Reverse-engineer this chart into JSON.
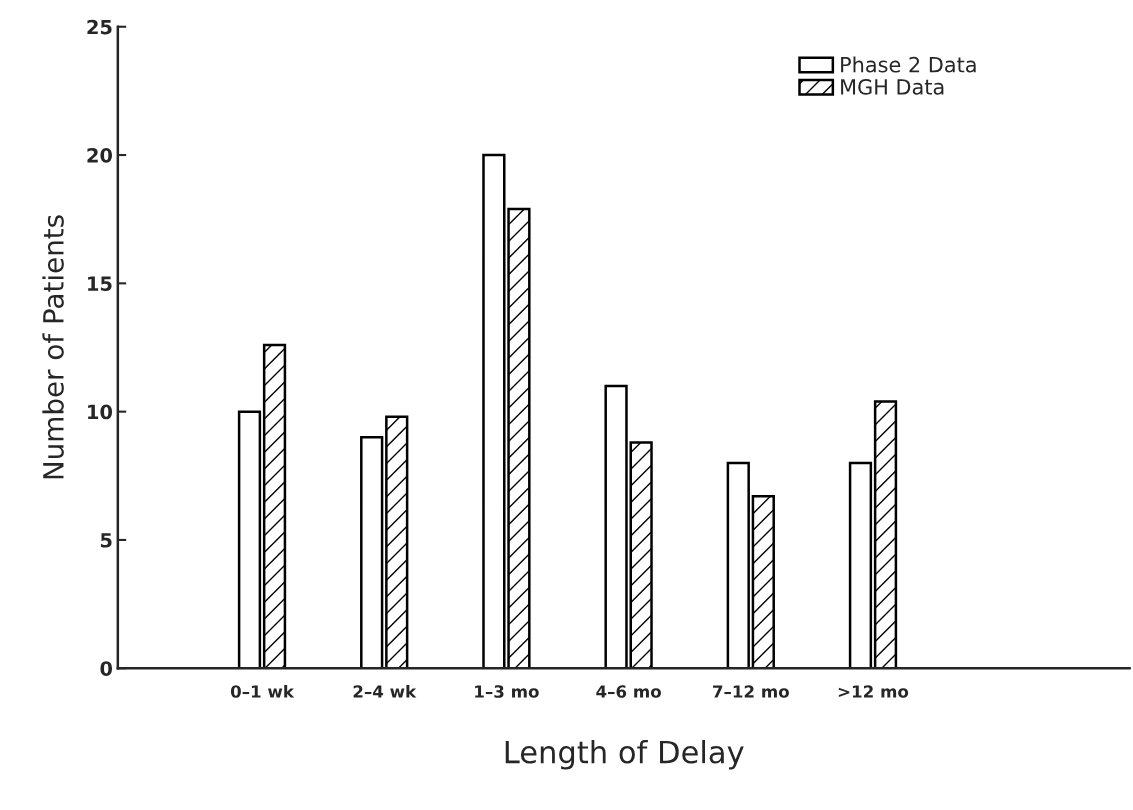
{
  "chart_data": {
    "type": "bar",
    "xlabel": "Length of Delay",
    "ylabel": "Number of Patients",
    "categories": [
      "0–1 wk",
      "2–4 wk",
      "1–3 mo",
      "4–6 mo",
      "7–12 mo",
      ">12 mo"
    ],
    "series": [
      {
        "name": "Phase 2 Data",
        "color": "#ffffff",
        "values": [
          10,
          9,
          20,
          11,
          8,
          8
        ]
      },
      {
        "name": "MGH Data",
        "color": "#000000",
        "values": [
          12.6,
          9.8,
          17.9,
          8.8,
          6.7,
          10.4
        ]
      }
    ],
    "ylim": [
      0,
      25
    ],
    "yticks": [
      0,
      5,
      10,
      15,
      20,
      25
    ],
    "grid": false,
    "legend": "top right"
  }
}
